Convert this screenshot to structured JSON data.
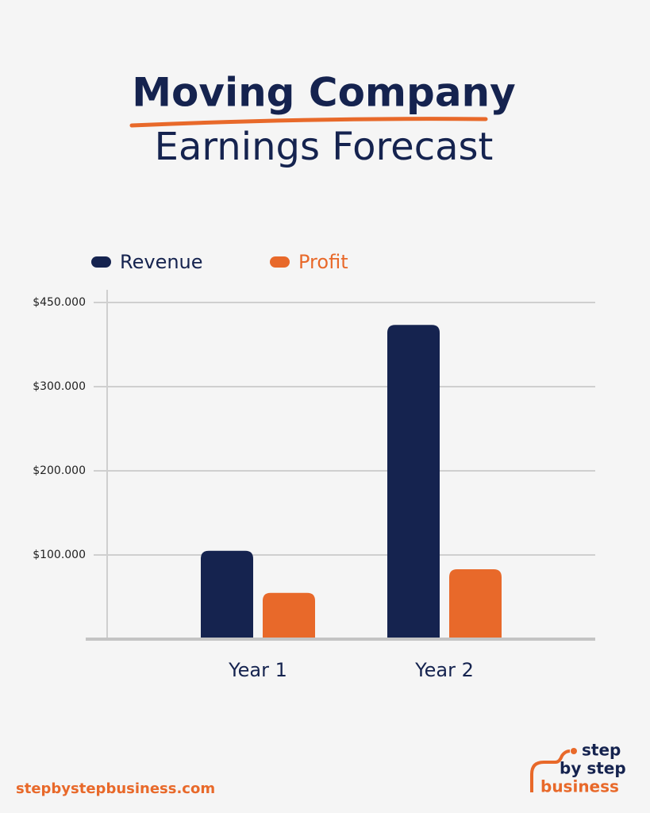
{
  "chart_data": {
    "type": "bar",
    "title": "Moving Company",
    "subtitle": "Earnings Forecast",
    "categories": [
      "Year 1",
      "Year 2"
    ],
    "series": [
      {
        "name": "Revenue",
        "color": "#15234f",
        "values": [
          105000,
          410000
        ]
      },
      {
        "name": "Profit",
        "color": "#e8692a",
        "values": [
          55000,
          83000
        ]
      }
    ],
    "ylim": [
      0,
      450000
    ],
    "yticks": [
      {
        "value": 100000,
        "label": "$100.000"
      },
      {
        "value": 200000,
        "label": "$200.000"
      },
      {
        "value": 300000,
        "label": "$300.000"
      },
      {
        "value": 450000,
        "label": "$450.000"
      }
    ],
    "grid": true,
    "legend": "top-left"
  },
  "footer": {
    "url": "stepbystepbusiness.com",
    "logo": [
      "step",
      "by step",
      "business"
    ]
  }
}
